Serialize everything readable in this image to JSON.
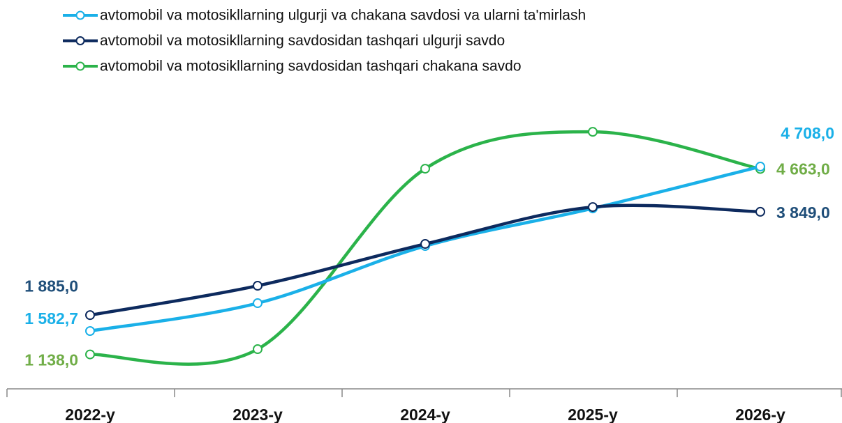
{
  "chart_data": {
    "type": "line",
    "categories": [
      "2022-y",
      "2023-y",
      "2024-y",
      "2025-y",
      "2026-y"
    ],
    "ylim": [
      0,
      6000
    ],
    "series": [
      {
        "name": "avtomobil va motosikllarning ulgurji va chakana savdosi va ularni ta'mirlash",
        "color": "#1ab0e8",
        "label_color": "#1ab0e8",
        "values": [
          1582.7,
          2112,
          3198,
          3913,
          4708.0
        ],
        "value_labels": [
          "1 582,7",
          null,
          null,
          null,
          "4 708,0"
        ]
      },
      {
        "name": "avtomobil va motosikllarning savdosidan tashqari ulgurji savdo",
        "color": "#0d2a5e",
        "label_color": "#1f4e79",
        "values": [
          1885.0,
          2443,
          3238,
          3939,
          3849.0
        ],
        "value_labels": [
          "1 885,0",
          null,
          null,
          null,
          "3 849,0"
        ]
      },
      {
        "name": "avtomobil va motosikllarning savdosidan tashqari chakana savdo",
        "color": "#2bb34a",
        "label_color": "#70ad47",
        "values": [
          1138.0,
          1238,
          4668,
          5369,
          4663.0
        ],
        "value_labels": [
          "1 138,0",
          null,
          null,
          null,
          "4 663,0"
        ]
      }
    ]
  }
}
